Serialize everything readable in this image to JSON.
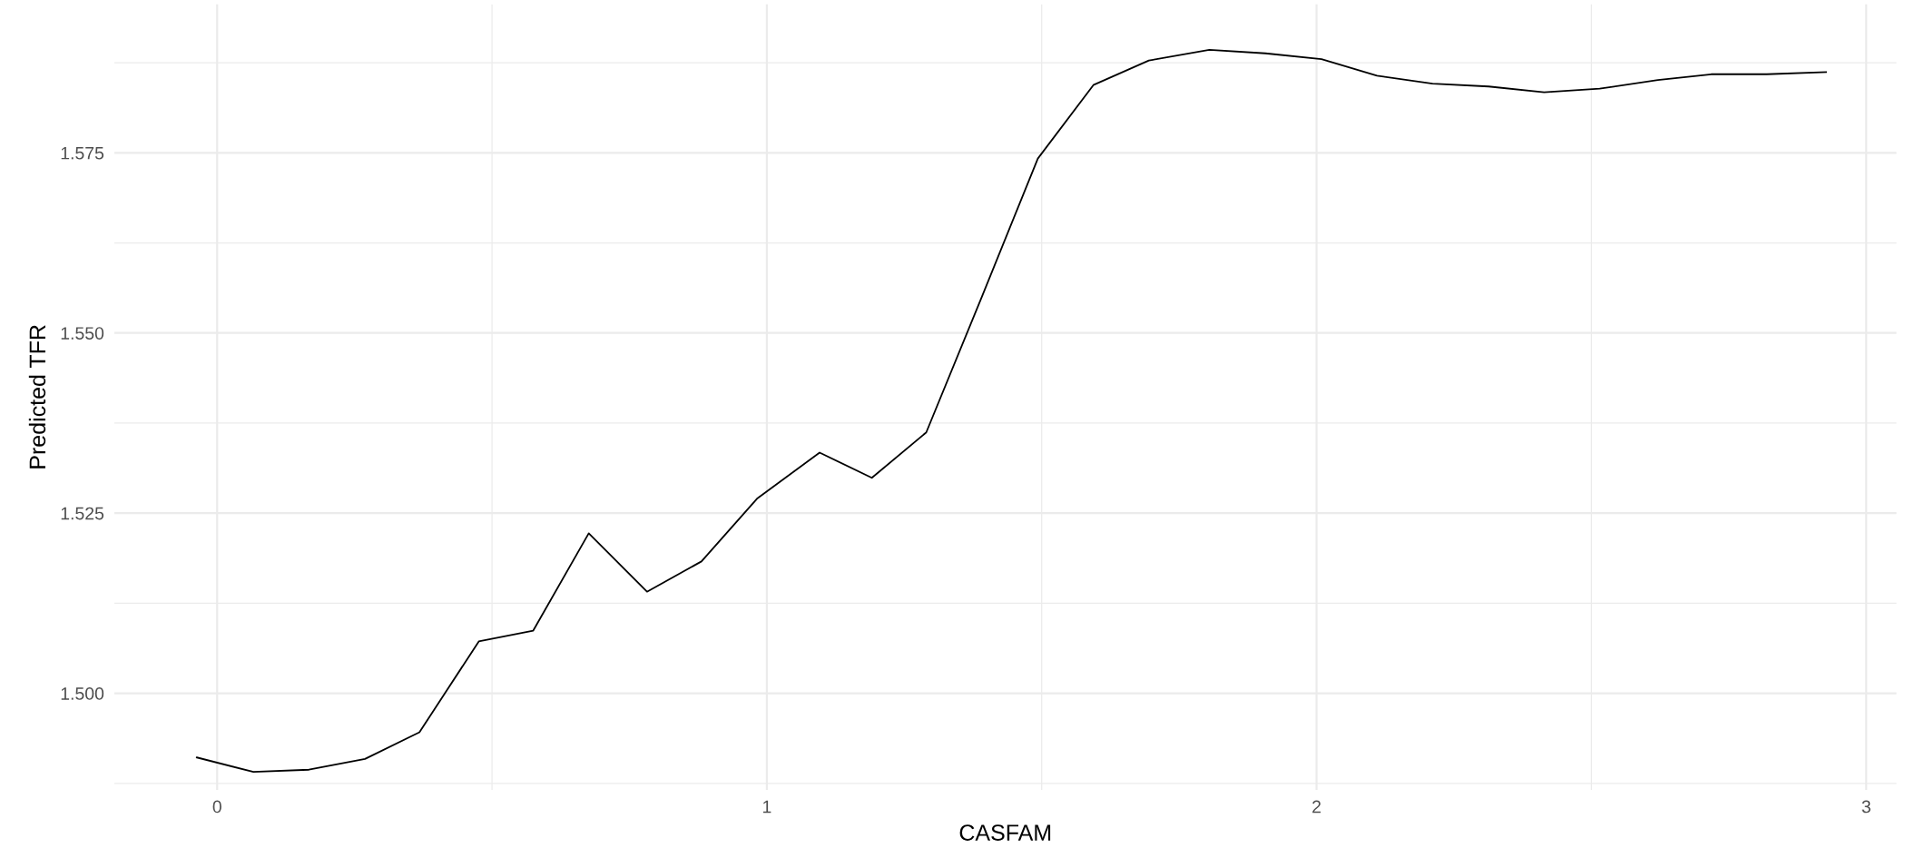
{
  "chart_data": {
    "type": "line",
    "xlabel": "CASFAM",
    "ylabel": "Predicted TFR",
    "x": [
      -0.037,
      0.066,
      0.167,
      0.269,
      0.368,
      0.476,
      0.575,
      0.676,
      0.782,
      0.881,
      0.982,
      1.096,
      1.191,
      1.29,
      1.391,
      1.493,
      1.594,
      1.695,
      1.805,
      1.907,
      2.009,
      2.11,
      2.211,
      2.313,
      2.414,
      2.515,
      2.621,
      2.718,
      2.819,
      2.927
    ],
    "series": [
      {
        "color": "#000000",
        "values": [
          1.4911,
          1.4891,
          1.4894,
          1.4909,
          1.4946,
          1.5072,
          1.5087,
          1.5222,
          1.5141,
          1.5183,
          1.527,
          1.5334,
          1.5299,
          1.5362,
          1.555,
          1.5742,
          1.5844,
          1.5878,
          1.5893,
          1.5888,
          1.588,
          1.5857,
          1.5846,
          1.5842,
          1.5834,
          1.5839,
          1.5851,
          1.5859,
          1.5859,
          1.5862
        ]
      }
    ],
    "xlim": [
      -0.187,
      3.055
    ],
    "ylim": [
      1.4866,
      1.5956
    ],
    "xticks": [
      0,
      {
        "value": 0.5,
        "label": null
      },
      1,
      {
        "value": 1.5,
        "label": null
      },
      2,
      {
        "value": 2.5,
        "label": null
      },
      3
    ],
    "yticks": [
      {
        "value": 1.4875,
        "label": null
      },
      {
        "value": 1.5,
        "label": "1.500"
      },
      {
        "value": 1.5125,
        "label": null
      },
      {
        "value": 1.525,
        "label": "1.525"
      },
      {
        "value": 1.5375,
        "label": null
      },
      {
        "value": 1.55,
        "label": "1.550"
      },
      {
        "value": 1.5625,
        "label": null
      },
      {
        "value": 1.575,
        "label": "1.575"
      },
      {
        "value": 1.5875,
        "label": null
      }
    ],
    "grid": true,
    "line_style": "solid",
    "marker": "none",
    "legend": false
  }
}
